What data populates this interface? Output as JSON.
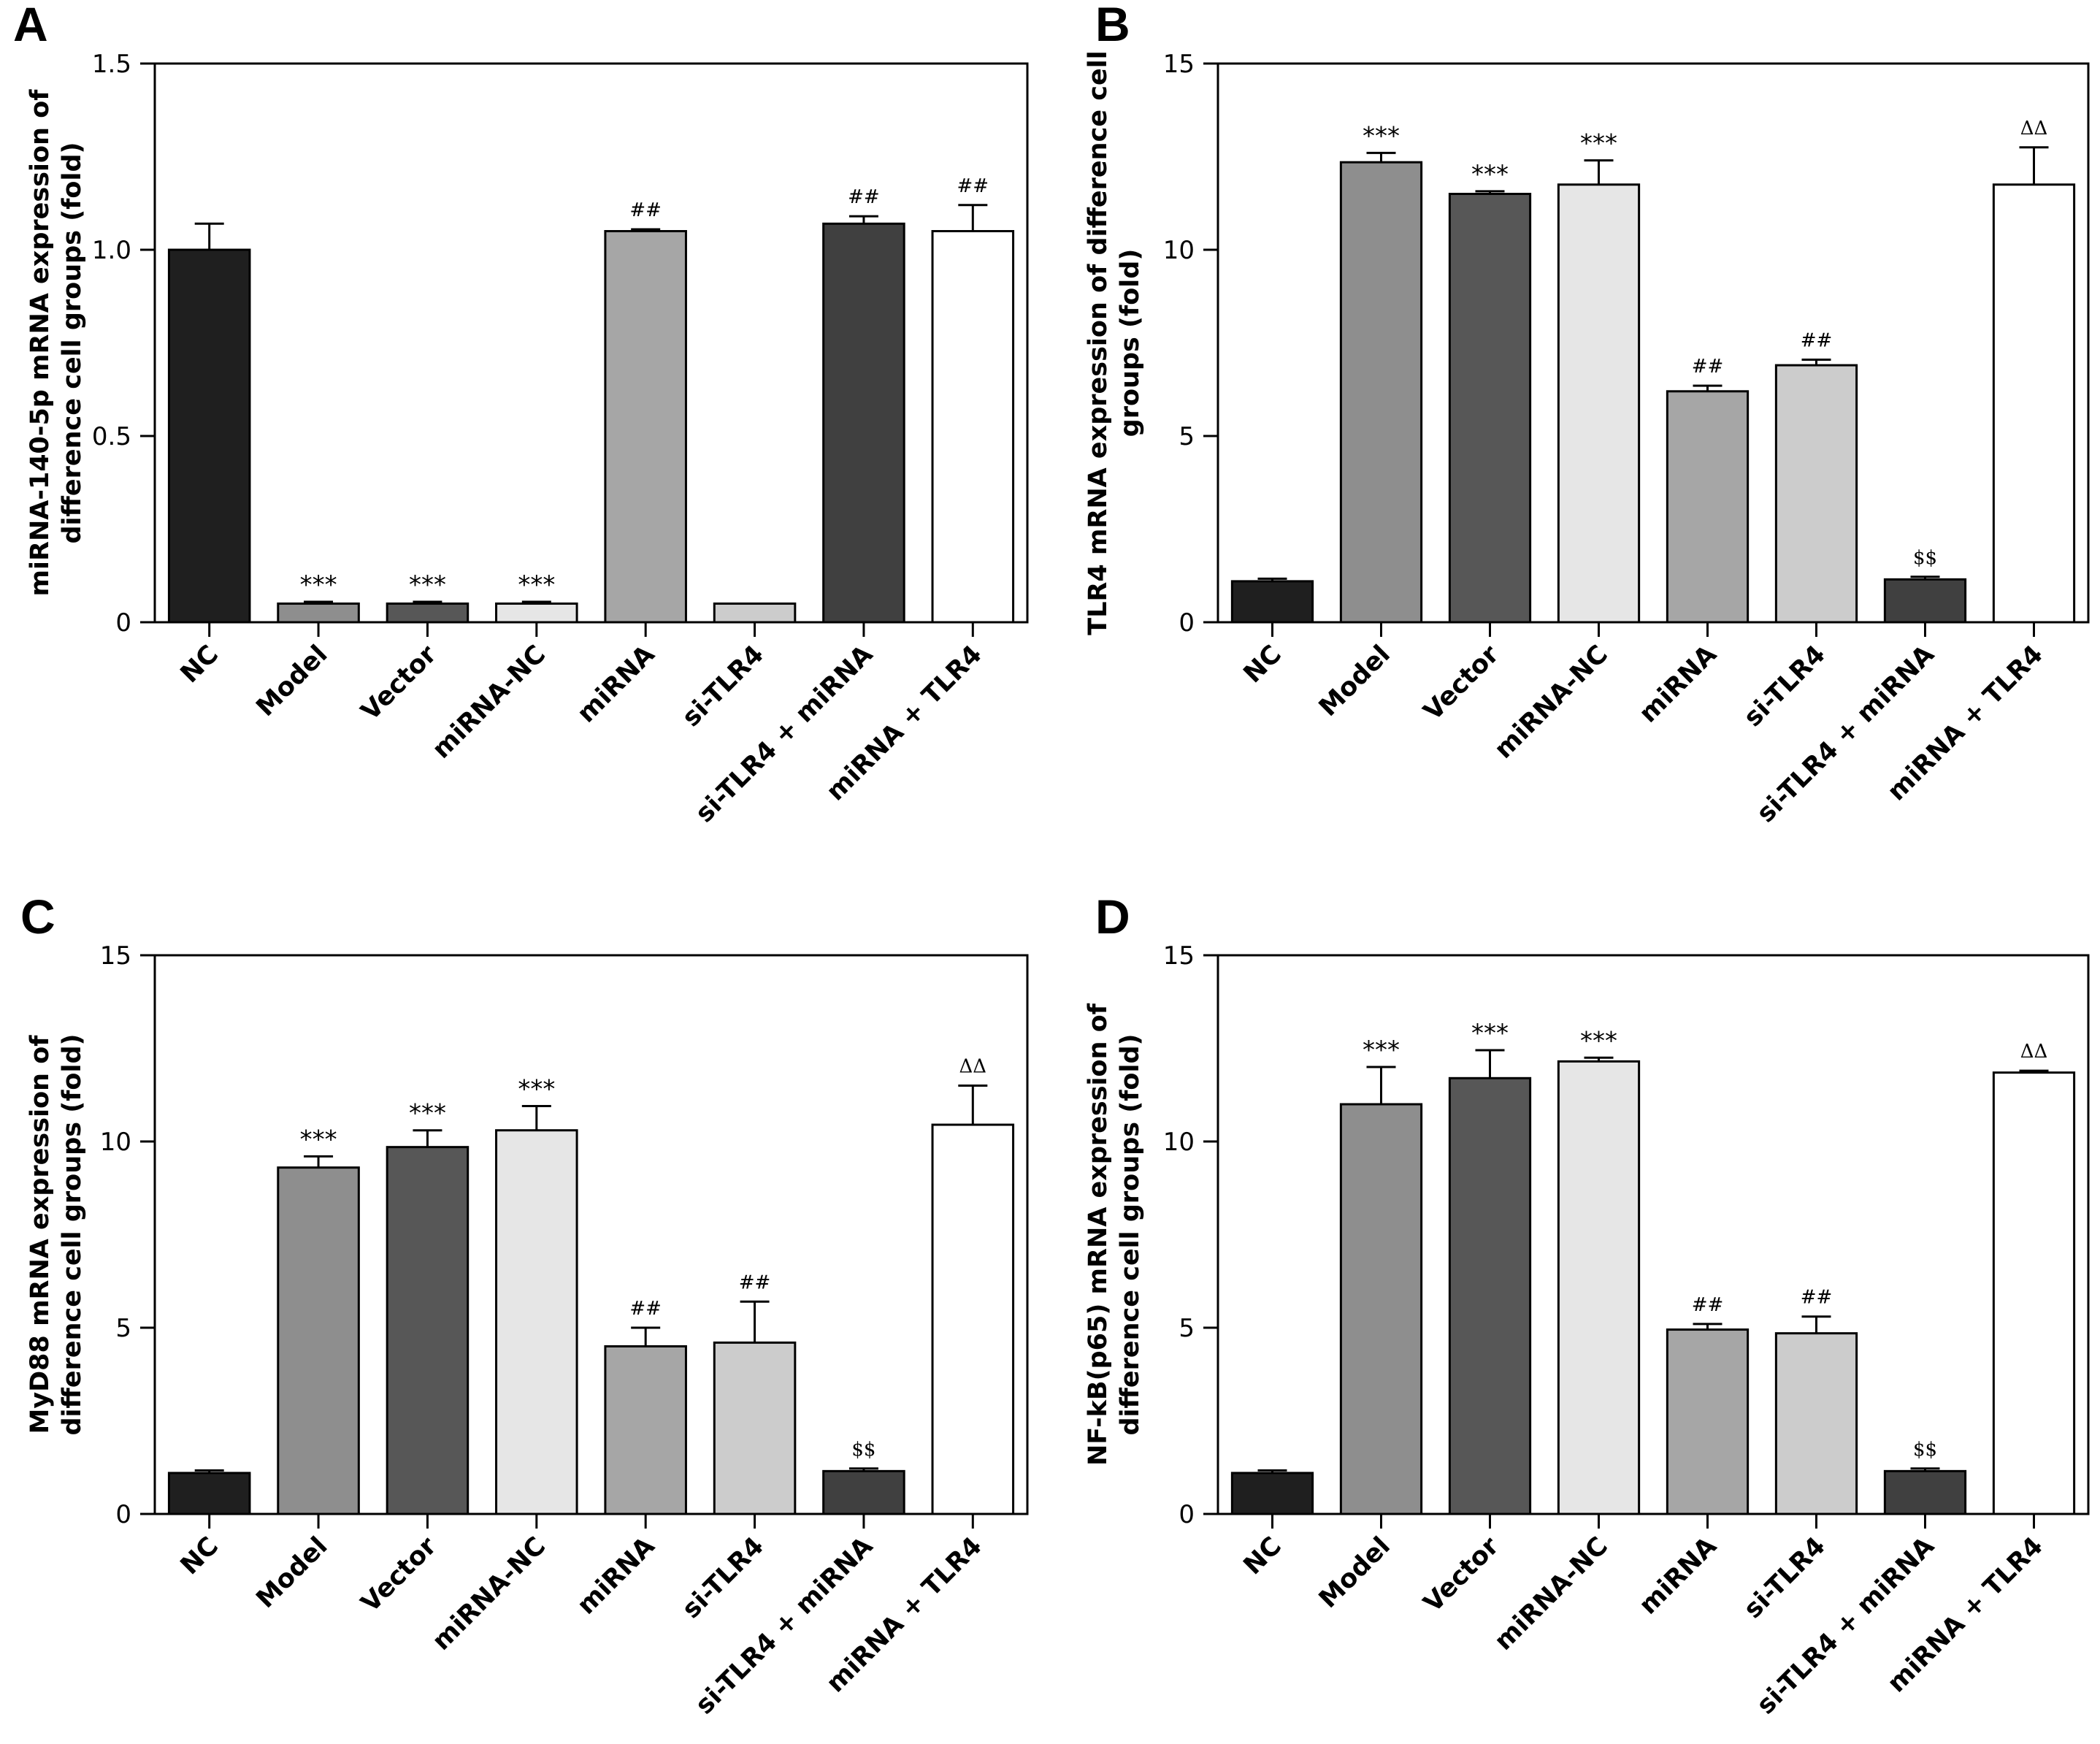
{
  "chart_data": [
    {
      "panel": "A",
      "type": "bar",
      "ylabel_lines": [
        "miRNA-140-5p mRNA expression of",
        "difference cell groups (fold)"
      ],
      "ylim": [
        0,
        1.5
      ],
      "yticks": [
        0,
        0.5,
        1.0,
        1.5
      ],
      "ytick_labels": [
        "0",
        "0.5",
        "1.0",
        "1.5"
      ],
      "categories": [
        "NC",
        "Model",
        "Vector",
        "miRNA-NC",
        "miRNA",
        "si-TLR4",
        "si-TLR4 + miRNA",
        "miRNA + TLR4"
      ],
      "values": [
        1.0,
        0.05,
        0.05,
        0.05,
        1.05,
        0.05,
        1.07,
        1.05
      ],
      "errors": [
        0.07,
        0.005,
        0.005,
        0.005,
        0.005,
        0.0,
        0.02,
        0.07
      ],
      "annotations": [
        "",
        "***",
        "***",
        "***",
        "##",
        "",
        "##",
        "##"
      ],
      "colors": [
        "#1f1f1f",
        "#8e8e8e",
        "#575757",
        "#e6e6e6",
        "#a6a6a6",
        "#cccccc",
        "#404040",
        "#ffffff"
      ]
    },
    {
      "panel": "B",
      "type": "bar",
      "ylabel_lines": [
        "TLR4 mRNA expression of difference cell",
        "groups (fold)"
      ],
      "ylim": [
        0,
        15
      ],
      "yticks": [
        0,
        5,
        10,
        15
      ],
      "ytick_labels": [
        "0",
        "5",
        "10",
        "15"
      ],
      "categories": [
        "NC",
        "Model",
        "Vector",
        "miRNA-NC",
        "miRNA",
        "si-TLR4",
        "si-TLR4 + miRNA",
        "miRNA + TLR4"
      ],
      "values": [
        1.1,
        12.35,
        11.5,
        11.75,
        6.2,
        6.9,
        1.15,
        11.75
      ],
      "errors": [
        0.07,
        0.25,
        0.07,
        0.65,
        0.15,
        0.15,
        0.07,
        1.0
      ],
      "annotations": [
        "",
        "***",
        "***",
        "***",
        "##",
        "##",
        "$$",
        "ΔΔ"
      ],
      "colors": [
        "#1f1f1f",
        "#8e8e8e",
        "#575757",
        "#e6e6e6",
        "#a6a6a6",
        "#cccccc",
        "#404040",
        "#ffffff"
      ]
    },
    {
      "panel": "C",
      "type": "bar",
      "ylabel_lines": [
        "MyD88 mRNA expression of",
        "difference cell groups (fold)"
      ],
      "ylim": [
        0,
        15
      ],
      "yticks": [
        0,
        5,
        10,
        15
      ],
      "ytick_labels": [
        "0",
        "5",
        "10",
        "15"
      ],
      "categories": [
        "NC",
        "Model",
        "Vector",
        "miRNA-NC",
        "miRNA",
        "si-TLR4",
        "si-TLR4 + miRNA",
        "miRNA + TLR4"
      ],
      "values": [
        1.1,
        9.3,
        9.85,
        10.3,
        4.5,
        4.6,
        1.15,
        10.45
      ],
      "errors": [
        0.07,
        0.3,
        0.45,
        0.65,
        0.5,
        1.1,
        0.07,
        1.05
      ],
      "annotations": [
        "",
        "***",
        "***",
        "***",
        "##",
        "##",
        "$$",
        "ΔΔ"
      ],
      "colors": [
        "#1f1f1f",
        "#8e8e8e",
        "#575757",
        "#e6e6e6",
        "#a6a6a6",
        "#cccccc",
        "#404040",
        "#ffffff"
      ]
    },
    {
      "panel": "D",
      "type": "bar",
      "ylabel_lines": [
        "NF-kB(p65) mRNA expression of",
        "difference cell groups (fold)"
      ],
      "ylim": [
        0,
        15
      ],
      "yticks": [
        0,
        5,
        10,
        15
      ],
      "ytick_labels": [
        "0",
        "5",
        "10",
        "15"
      ],
      "categories": [
        "NC",
        "Model",
        "Vector",
        "miRNA-NC",
        "miRNA",
        "si-TLR4",
        "si-TLR4 + miRNA",
        "miRNA + TLR4"
      ],
      "values": [
        1.1,
        11.0,
        11.7,
        12.15,
        4.95,
        4.85,
        1.15,
        11.85
      ],
      "errors": [
        0.07,
        1.0,
        0.75,
        0.1,
        0.15,
        0.45,
        0.07,
        0.05
      ],
      "annotations": [
        "",
        "***",
        "***",
        "***",
        "##",
        "##",
        "$$",
        "ΔΔ"
      ],
      "colors": [
        "#1f1f1f",
        "#8e8e8e",
        "#575757",
        "#e6e6e6",
        "#a6a6a6",
        "#cccccc",
        "#404040",
        "#ffffff"
      ]
    }
  ]
}
